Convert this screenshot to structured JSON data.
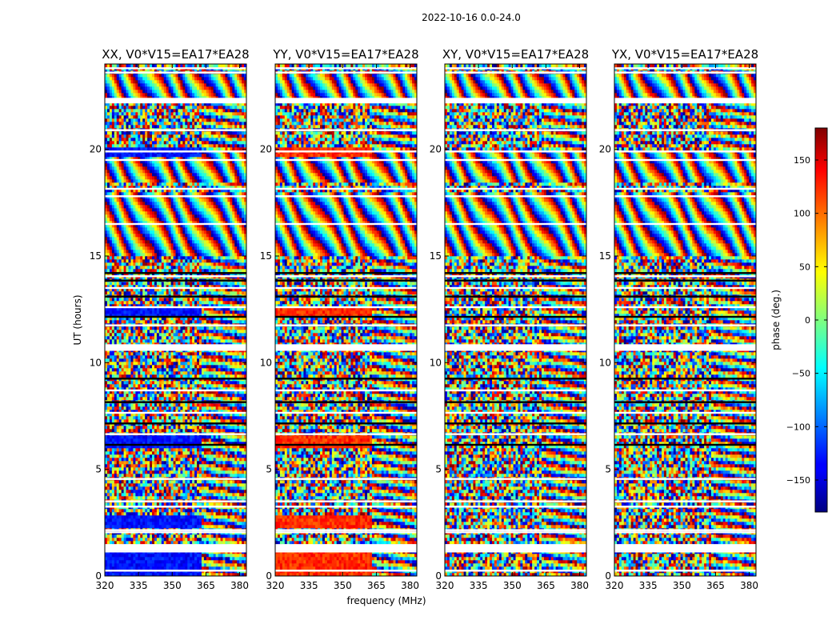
{
  "chart_data": {
    "type": "heatmap",
    "suptitle": "2022-10-16 0.0-24.0",
    "xlabel": "frequency (MHz)",
    "ylabel": "UT (hours)",
    "xlim": [
      320,
      383
    ],
    "ylim": [
      0,
      24
    ],
    "xticks": [
      320,
      335,
      350,
      365,
      380
    ],
    "yticks": [
      0,
      5,
      10,
      15,
      20
    ],
    "colorbar": {
      "label": "phase (deg.)",
      "range": [
        -180,
        180
      ],
      "colormap": "jet",
      "ticks": [
        -150,
        -100,
        -50,
        0,
        50,
        100,
        150
      ],
      "tick_labels": [
        "−150",
        "−100",
        "−50",
        "0",
        "50",
        "100",
        "150"
      ]
    },
    "panels": [
      {
        "title": "XX, V0*V15=EA17*EA28",
        "baseline": "V0*V15",
        "antennas": "EA17*EA28",
        "polarization": "XX",
        "calibrator_phase": -130
      },
      {
        "title": "YY, V0*V15=EA17*EA28",
        "baseline": "V0*V15",
        "antennas": "EA17*EA28",
        "polarization": "YY",
        "calibrator_phase": 120
      },
      {
        "title": "XY, V0*V15=EA17*EA28",
        "baseline": "V0*V15",
        "antennas": "EA17*EA28",
        "polarization": "XY",
        "calibrator_phase": null
      },
      {
        "title": "YX, V0*V15=EA17*EA28",
        "baseline": "V0*V15",
        "antennas": "EA17*EA28",
        "polarization": "YX",
        "calibrator_phase": null
      }
    ],
    "flagged_hours": [
      0.25,
      1.15,
      1.3,
      1.45,
      2.05,
      2.15,
      3.25,
      3.5,
      4.55,
      6.15,
      6.65,
      7.15,
      7.65,
      8.15,
      8.7,
      9.25,
      10.6,
      10.75,
      11.75,
      12.15,
      12.6,
      13.1,
      13.5,
      13.85,
      14.05,
      14.2,
      16.5,
      17.8,
      18.15,
      19.5,
      19.9,
      20.9,
      22.2,
      22.3,
      23.6,
      23.8
    ],
    "structured_fringe_hours": [
      [
        15.0,
        18.0
      ],
      [
        18.5,
        20.0
      ],
      [
        22.3,
        23.5
      ]
    ]
  }
}
